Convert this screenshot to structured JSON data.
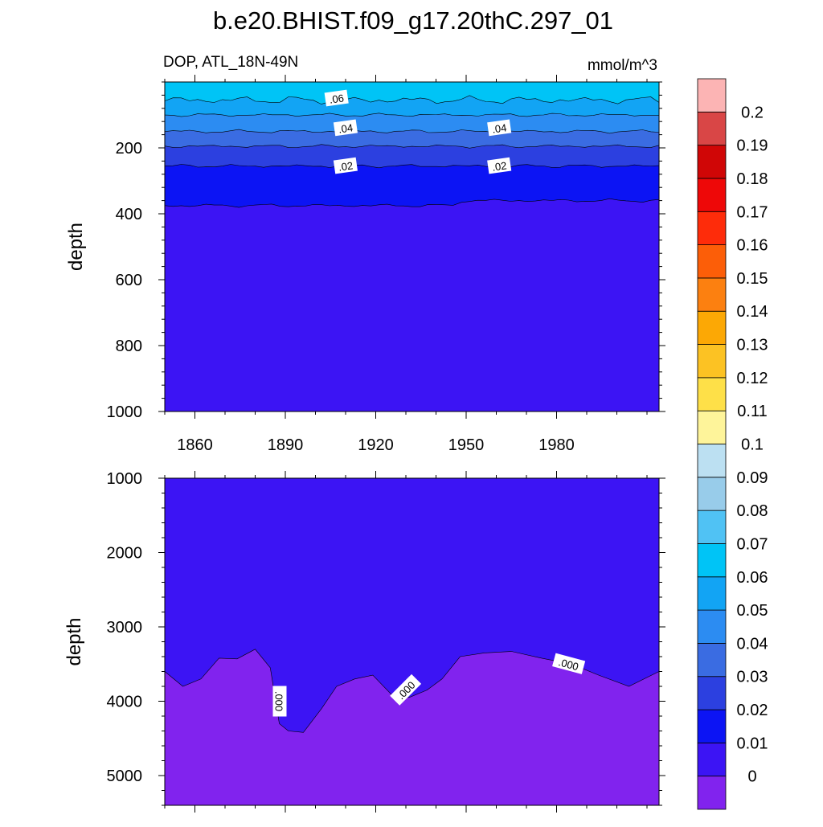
{
  "title": "b.e20.BHIST.f09_g17.20thC.297_01",
  "left_subtitle": "DOP, ATL_18N-49N",
  "right_subtitle": "mmol/m^3",
  "chart_data": [
    {
      "type": "heatmap",
      "panel": "top",
      "xlabel": "",
      "ylabel": "depth",
      "xlim": [
        1850,
        2014
      ],
      "ylim": [
        1000,
        0
      ],
      "y_reversed": true,
      "x_ticks": [
        "1860",
        "1890",
        "1920",
        "1950",
        "1980"
      ],
      "y_ticks": [
        "200",
        "400",
        "600",
        "800",
        "1000"
      ],
      "contour_labels": [
        {
          "text": ".06",
          "x": 1907,
          "y": 50
        },
        {
          "text": ".04",
          "x": 1910,
          "y": 140
        },
        {
          "text": ".04",
          "x": 1961,
          "y": 140
        },
        {
          "text": ".02",
          "x": 1910,
          "y": 255
        },
        {
          "text": ".02",
          "x": 1961,
          "y": 255
        }
      ],
      "contour_levels": [
        {
          "level": 0.06,
          "mean_depth": 55
        },
        {
          "level": 0.05,
          "mean_depth": 100
        },
        {
          "level": 0.04,
          "mean_depth": 150
        },
        {
          "level": 0.03,
          "mean_depth": 195
        },
        {
          "level": 0.02,
          "mean_depth": 255
        },
        {
          "level": 0.01,
          "mean_depth": 375
        }
      ]
    },
    {
      "type": "heatmap",
      "panel": "bottom",
      "xlabel": "",
      "ylabel": "depth",
      "xlim": [
        1850,
        2014
      ],
      "ylim": [
        5400,
        1000
      ],
      "y_reversed": true,
      "y_ticks": [
        "1000",
        "2000",
        "3000",
        "4000",
        "5000"
      ],
      "zero_contour": {
        "years": [
          1850,
          1856,
          1862,
          1868,
          1874,
          1880,
          1885,
          1888,
          1891,
          1896,
          1902,
          1907,
          1913,
          1919,
          1925,
          1931,
          1937,
          1942,
          1948,
          1956,
          1965,
          1975,
          1985,
          1994,
          2004,
          2014
        ],
        "depths": [
          3600,
          3800,
          3700,
          3420,
          3430,
          3300,
          3550,
          4300,
          4400,
          4420,
          4100,
          3800,
          3700,
          3650,
          3900,
          3950,
          3850,
          3700,
          3400,
          3350,
          3330,
          3420,
          3500,
          3650,
          3800,
          3600
        ]
      },
      "contour_labels": [
        {
          "text": ".000",
          "x": 1888,
          "y": 4000
        },
        {
          "text": ".000",
          "x": 1930,
          "y": 3850
        },
        {
          "text": ".000",
          "x": 1984,
          "y": 3500
        }
      ]
    }
  ],
  "colorbar": {
    "labels": [
      "0",
      "0.01",
      "0.02",
      "0.03",
      "0.04",
      "0.05",
      "0.06",
      "0.07",
      "0.08",
      "0.09",
      "0.1",
      "0.11",
      "0.12",
      "0.13",
      "0.14",
      "0.15",
      "0.16",
      "0.17",
      "0.18",
      "0.19",
      "0.2"
    ],
    "colors": [
      "#8123ee",
      "#3c14f4",
      "#0c14f4",
      "#2c40e0",
      "#3a6ce2",
      "#2c8cf2",
      "#12a4f4",
      "#00c4f6",
      "#50c2f4",
      "#98ccea",
      "#bce0f2",
      "#fef49a",
      "#fee048",
      "#fcc223",
      "#fca805",
      "#fc8010",
      "#fc5e08",
      "#fe2c0a",
      "#ee0808",
      "#d00606",
      "#d94646",
      "#fcb4b4"
    ]
  }
}
